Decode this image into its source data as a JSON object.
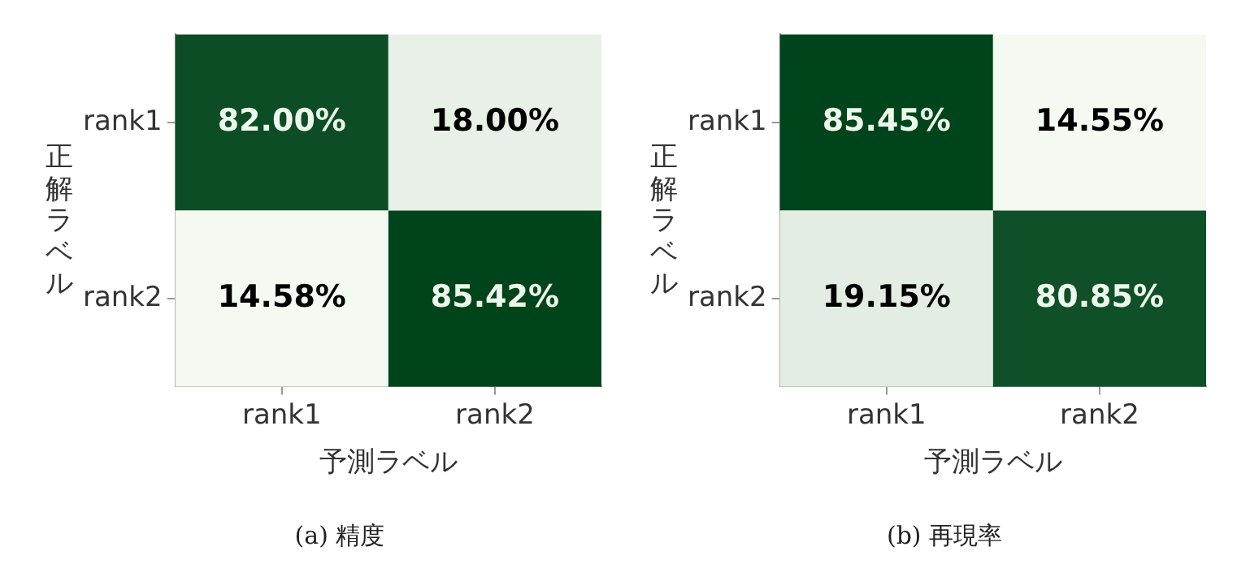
{
  "chart_data": [
    {
      "type": "heatmap",
      "title": "(a) 精度",
      "xlabel": "予測ラベル",
      "ylabel": "正解ラベル",
      "categories": [
        "rank1",
        "rank2"
      ],
      "y_categories": [
        "rank1",
        "rank2"
      ],
      "cells": [
        [
          82.0,
          18.0
        ],
        [
          14.58,
          85.42
        ]
      ],
      "cell_labels": [
        [
          "82.00%",
          "18.00%"
        ],
        [
          "14.58%",
          "85.42%"
        ]
      ],
      "colors": [
        "#f4f9f2",
        "#00441b"
      ]
    },
    {
      "type": "heatmap",
      "title": "(b) 再現率",
      "xlabel": "予測ラベル",
      "ylabel": "正解ラベル",
      "categories": [
        "rank1",
        "rank2"
      ],
      "y_categories": [
        "rank1",
        "rank2"
      ],
      "cells": [
        [
          85.45,
          14.55
        ],
        [
          19.15,
          80.85
        ]
      ],
      "cell_labels": [
        [
          "85.45%",
          "14.55%"
        ],
        [
          "19.15%",
          "80.85%"
        ]
      ],
      "colors": [
        "#f4f9f2",
        "#00441b"
      ]
    }
  ]
}
